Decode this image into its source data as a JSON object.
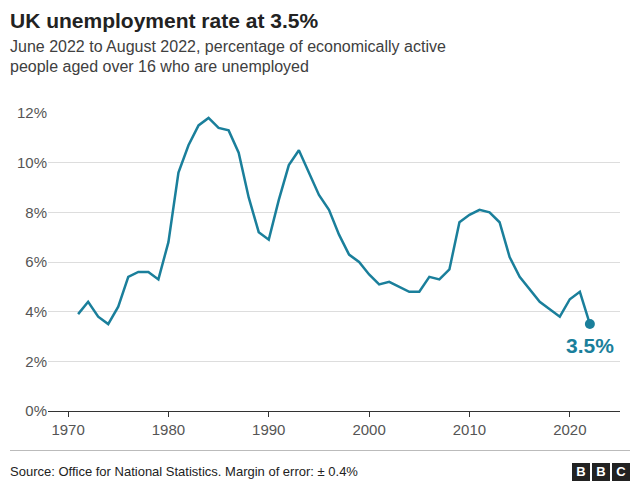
{
  "chart_data": {
    "type": "line",
    "title": "UK unemployment rate at 3.5%",
    "subtitle": [
      "June 2022 to August 2022, percentage of economically active",
      "people aged over 16 who are unemployed"
    ],
    "source": "Source: Office for National Statistics. Margin of error: ± 0.4%",
    "logo": "BBC",
    "color": "#1a7f9b",
    "grid": true,
    "x": [
      1971,
      1972,
      1973,
      1974,
      1975,
      1976,
      1977,
      1978,
      1979,
      1980,
      1981,
      1982,
      1983,
      1984,
      1985,
      1986,
      1987,
      1988,
      1989,
      1990,
      1991,
      1992,
      1993,
      1994,
      1995,
      1996,
      1997,
      1998,
      1999,
      2000,
      2001,
      2002,
      2003,
      2004,
      2005,
      2006,
      2007,
      2008,
      2009,
      2010,
      2011,
      2012,
      2013,
      2014,
      2015,
      2016,
      2017,
      2018,
      2019,
      2020,
      2021,
      2022
    ],
    "values": [
      3.9,
      4.4,
      3.8,
      3.5,
      4.2,
      5.4,
      5.6,
      5.6,
      5.3,
      6.8,
      9.6,
      10.7,
      11.5,
      11.8,
      11.4,
      11.3,
      10.4,
      8.6,
      7.2,
      6.9,
      8.5,
      9.9,
      10.5,
      9.6,
      8.7,
      8.1,
      7.1,
      6.3,
      6.0,
      5.5,
      5.1,
      5.2,
      5.0,
      4.8,
      4.8,
      5.4,
      5.3,
      5.7,
      7.6,
      7.9,
      8.1,
      8.0,
      7.6,
      6.2,
      5.4,
      4.9,
      4.4,
      4.1,
      3.8,
      4.5,
      4.8,
      3.5
    ],
    "xlim": [
      1968,
      2025
    ],
    "xticks": [
      1970,
      1980,
      1990,
      2000,
      2010,
      2020
    ],
    "ylim": [
      0,
      12
    ],
    "yticks": [
      {
        "value": 0,
        "label": "0%"
      },
      {
        "value": 2,
        "label": "2%"
      },
      {
        "value": 4,
        "label": "4%"
      },
      {
        "value": 6,
        "label": "6%"
      },
      {
        "value": 8,
        "label": "8%"
      },
      {
        "value": 10,
        "label": "10%"
      },
      {
        "value": 12,
        "label": "12%"
      }
    ],
    "annotations": [
      {
        "x": 2022,
        "y": 3.5,
        "text": "3.5%"
      }
    ]
  }
}
